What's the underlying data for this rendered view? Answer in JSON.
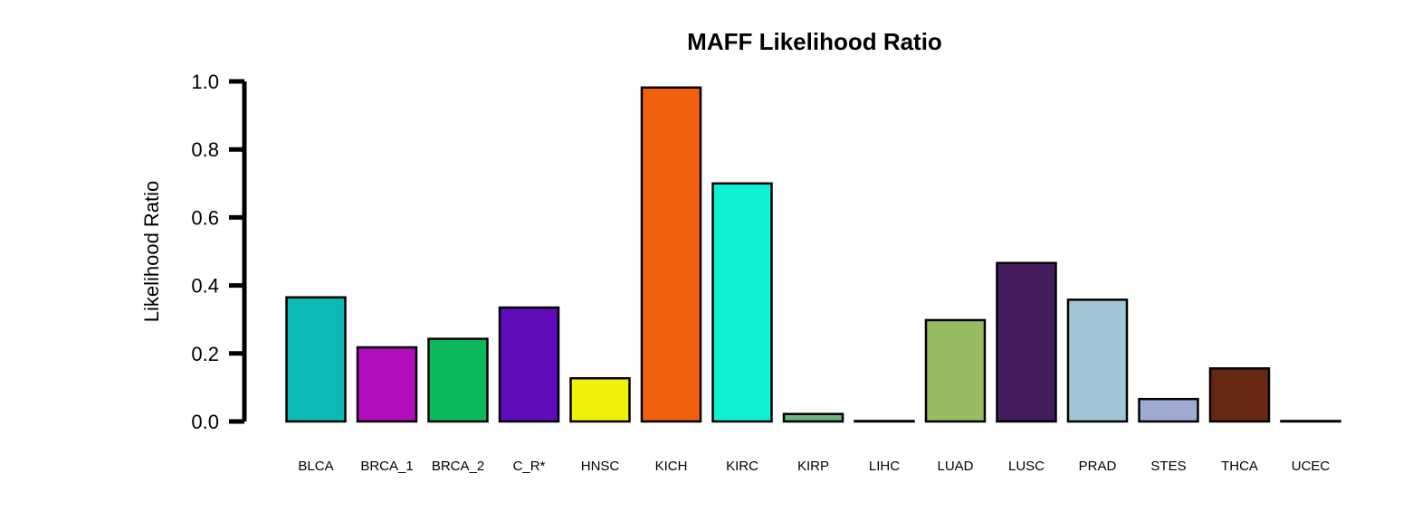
{
  "chart_data": {
    "type": "bar",
    "title": "MAFF Likelihood Ratio",
    "xlabel": "",
    "ylabel": "Likelihood Ratio",
    "ylim": [
      0,
      1.0
    ],
    "yticks": [
      "0.0",
      "0.2",
      "0.4",
      "0.6",
      "0.8",
      "1.0"
    ],
    "grid": false,
    "legend": "none",
    "categories": [
      "BLCA",
      "BRCA_1",
      "BRCA_2",
      "C_R*",
      "HNSC",
      "KICH",
      "KIRC",
      "KIRP",
      "LIHC",
      "LUAD",
      "LUSC",
      "PRAD",
      "STES",
      "THCA",
      "UCEC"
    ],
    "values": [
      0.365,
      0.218,
      0.243,
      0.335,
      0.127,
      0.982,
      0.7,
      0.022,
      0.001,
      0.298,
      0.466,
      0.358,
      0.066,
      0.156,
      0.001
    ],
    "colors": [
      "#0BBAB5",
      "#B20CBC",
      "#09B95A",
      "#5E0BBA",
      "#F0F00B",
      "#F1600E",
      "#0EF0D4",
      "#6AB77F",
      "#ED8A8C",
      "#97BB63",
      "#441C5E",
      "#A0C5D5",
      "#A0ABD4",
      "#682710",
      "#D9D9D9"
    ]
  }
}
